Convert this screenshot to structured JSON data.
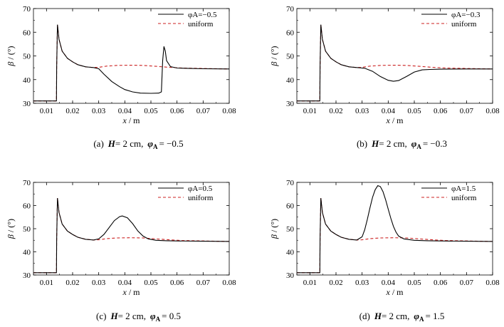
{
  "chart_data": [
    {
      "type": "line",
      "panel_label": "(a)",
      "caption_prefix": "H",
      "caption_h": "= 2 cm,",
      "caption_phi_value": "= −0.5",
      "xlabel": "x",
      "xunit": "m",
      "ylabel": "β",
      "yunit": "(°)",
      "xlim": [
        0.005,
        0.08
      ],
      "ylim": [
        30,
        70
      ],
      "xticks": [
        "0.01",
        "0.02",
        "0.03",
        "0.04",
        "0.05",
        "0.06",
        "0.07",
        "0.08"
      ],
      "yticks": [
        "30",
        "40",
        "50",
        "60",
        "70"
      ],
      "legend_placement": "top-right",
      "series": [
        {
          "name": "φA=−0.5",
          "style": "solid",
          "color": "#000000",
          "points": [
            [
              0.005,
              31
            ],
            [
              0.0138,
              31
            ],
            [
              0.0139,
              45
            ],
            [
              0.0142,
              63.2
            ],
            [
              0.0148,
              57
            ],
            [
              0.016,
              52
            ],
            [
              0.018,
              49
            ],
            [
              0.02,
              47.5
            ],
            [
              0.022,
              46.3
            ],
            [
              0.025,
              45.4
            ],
            [
              0.028,
              45.1
            ],
            [
              0.03,
              44.6
            ],
            [
              0.032,
              42.3
            ],
            [
              0.035,
              39.2
            ],
            [
              0.038,
              37
            ],
            [
              0.04,
              35.8
            ],
            [
              0.043,
              34.8
            ],
            [
              0.046,
              34.3
            ],
            [
              0.05,
              34.2
            ],
            [
              0.053,
              34.3
            ],
            [
              0.054,
              34.8
            ],
            [
              0.0545,
              48
            ],
            [
              0.055,
              54
            ],
            [
              0.0555,
              52
            ],
            [
              0.056,
              48
            ],
            [
              0.0575,
              45.5
            ],
            [
              0.06,
              44.9
            ],
            [
              0.065,
              44.7
            ],
            [
              0.07,
              44.6
            ],
            [
              0.08,
              44.5
            ]
          ]
        },
        {
          "name": "uniform",
          "style": "dashed",
          "color": "#cc2222",
          "points": [
            [
              0.005,
              31
            ],
            [
              0.0138,
              31
            ],
            [
              0.0139,
              45
            ],
            [
              0.0142,
              63.2
            ],
            [
              0.0148,
              57
            ],
            [
              0.016,
              52
            ],
            [
              0.018,
              49
            ],
            [
              0.02,
              47.5
            ],
            [
              0.022,
              46.3
            ],
            [
              0.025,
              45.4
            ],
            [
              0.028,
              45.1
            ],
            [
              0.03,
              45.2
            ],
            [
              0.033,
              45.7
            ],
            [
              0.037,
              46
            ],
            [
              0.042,
              46.1
            ],
            [
              0.047,
              46
            ],
            [
              0.052,
              45.6
            ],
            [
              0.057,
              45.2
            ],
            [
              0.062,
              44.9
            ],
            [
              0.07,
              44.7
            ],
            [
              0.08,
              44.5
            ]
          ]
        }
      ]
    },
    {
      "type": "line",
      "panel_label": "(b)",
      "caption_prefix": "H",
      "caption_h": "= 2 cm,",
      "caption_phi_value": "= −0.3",
      "xlabel": "x",
      "xunit": "m",
      "ylabel": "β",
      "yunit": "(°)",
      "xlim": [
        0.005,
        0.08
      ],
      "ylim": [
        30,
        70
      ],
      "xticks": [
        "0.01",
        "0.02",
        "0.03",
        "0.04",
        "0.05",
        "0.06",
        "0.07",
        "0.08"
      ],
      "yticks": [
        "30",
        "40",
        "50",
        "60",
        "70"
      ],
      "legend_placement": "top-right",
      "series": [
        {
          "name": "φA=−0.3",
          "style": "solid",
          "color": "#000000",
          "points": [
            [
              0.005,
              31
            ],
            [
              0.0138,
              31
            ],
            [
              0.0139,
              45
            ],
            [
              0.0142,
              63.2
            ],
            [
              0.0148,
              57
            ],
            [
              0.016,
              52
            ],
            [
              0.018,
              49
            ],
            [
              0.02,
              47.5
            ],
            [
              0.022,
              46.3
            ],
            [
              0.025,
              45.4
            ],
            [
              0.028,
              45.1
            ],
            [
              0.031,
              44.8
            ],
            [
              0.034,
              43.5
            ],
            [
              0.037,
              41.3
            ],
            [
              0.04,
              39.7
            ],
            [
              0.042,
              39.3
            ],
            [
              0.044,
              39.6
            ],
            [
              0.047,
              41.3
            ],
            [
              0.05,
              43.2
            ],
            [
              0.053,
              44.1
            ],
            [
              0.056,
              44.3
            ],
            [
              0.06,
              44.4
            ],
            [
              0.07,
              44.5
            ],
            [
              0.08,
              44.5
            ]
          ]
        },
        {
          "name": "uniform",
          "style": "dashed",
          "color": "#cc2222",
          "points": [
            [
              0.005,
              31
            ],
            [
              0.0138,
              31
            ],
            [
              0.0139,
              45
            ],
            [
              0.0142,
              63.2
            ],
            [
              0.0148,
              57
            ],
            [
              0.016,
              52
            ],
            [
              0.018,
              49
            ],
            [
              0.02,
              47.5
            ],
            [
              0.022,
              46.3
            ],
            [
              0.025,
              45.4
            ],
            [
              0.028,
              45.1
            ],
            [
              0.03,
              45.2
            ],
            [
              0.033,
              45.7
            ],
            [
              0.037,
              46
            ],
            [
              0.042,
              46.1
            ],
            [
              0.047,
              46
            ],
            [
              0.052,
              45.6
            ],
            [
              0.057,
              45.2
            ],
            [
              0.062,
              44.9
            ],
            [
              0.07,
              44.7
            ],
            [
              0.08,
              44.5
            ]
          ]
        }
      ]
    },
    {
      "type": "line",
      "panel_label": "(c)",
      "caption_prefix": "H",
      "caption_h": "= 2 cm,",
      "caption_phi_value": "= 0.5",
      "xlabel": "x",
      "xunit": "m",
      "ylabel": "β",
      "yunit": "(°)",
      "xlim": [
        0.005,
        0.08
      ],
      "ylim": [
        30,
        70
      ],
      "xticks": [
        "0.01",
        "0.02",
        "0.03",
        "0.04",
        "0.05",
        "0.06",
        "0.07",
        "0.08"
      ],
      "yticks": [
        "30",
        "40",
        "50",
        "60",
        "70"
      ],
      "legend_placement": "top-right",
      "series": [
        {
          "name": "φA=0.5",
          "style": "solid",
          "color": "#000000",
          "points": [
            [
              0.005,
              31
            ],
            [
              0.0138,
              31
            ],
            [
              0.0139,
              45
            ],
            [
              0.0142,
              63.2
            ],
            [
              0.0148,
              57
            ],
            [
              0.016,
              52
            ],
            [
              0.018,
              49
            ],
            [
              0.02,
              47.5
            ],
            [
              0.022,
              46.3
            ],
            [
              0.025,
              45.4
            ],
            [
              0.028,
              45.1
            ],
            [
              0.03,
              45.6
            ],
            [
              0.032,
              47.5
            ],
            [
              0.034,
              50.5
            ],
            [
              0.036,
              53.5
            ],
            [
              0.038,
              55.2
            ],
            [
              0.039,
              55.5
            ],
            [
              0.041,
              54.7
            ],
            [
              0.043,
              52.2
            ],
            [
              0.045,
              49
            ],
            [
              0.047,
              46.8
            ],
            [
              0.049,
              45.6
            ],
            [
              0.052,
              45
            ],
            [
              0.056,
              44.8
            ],
            [
              0.06,
              44.7
            ],
            [
              0.07,
              44.6
            ],
            [
              0.08,
              44.5
            ]
          ]
        },
        {
          "name": "uniform",
          "style": "dashed",
          "color": "#cc2222",
          "points": [
            [
              0.005,
              31
            ],
            [
              0.0138,
              31
            ],
            [
              0.0139,
              45
            ],
            [
              0.0142,
              63.2
            ],
            [
              0.0148,
              57
            ],
            [
              0.016,
              52
            ],
            [
              0.018,
              49
            ],
            [
              0.02,
              47.5
            ],
            [
              0.022,
              46.3
            ],
            [
              0.025,
              45.4
            ],
            [
              0.028,
              45.1
            ],
            [
              0.03,
              45.2
            ],
            [
              0.033,
              45.7
            ],
            [
              0.037,
              46
            ],
            [
              0.042,
              46.1
            ],
            [
              0.047,
              46
            ],
            [
              0.052,
              45.6
            ],
            [
              0.057,
              45.2
            ],
            [
              0.062,
              44.9
            ],
            [
              0.07,
              44.7
            ],
            [
              0.08,
              44.5
            ]
          ]
        }
      ]
    },
    {
      "type": "line",
      "panel_label": "(d)",
      "caption_prefix": "H",
      "caption_h": "= 2 cm,",
      "caption_phi_value": "= 1.5",
      "xlabel": "x",
      "xunit": "m",
      "ylabel": "β",
      "yunit": "(°)",
      "xlim": [
        0.005,
        0.08
      ],
      "ylim": [
        30,
        70
      ],
      "xticks": [
        "0.01",
        "0.02",
        "0.03",
        "0.04",
        "0.05",
        "0.06",
        "0.07",
        "0.08"
      ],
      "yticks": [
        "30",
        "40",
        "50",
        "60",
        "70"
      ],
      "legend_placement": "top-right",
      "series": [
        {
          "name": "φA=1.5",
          "style": "solid",
          "color": "#000000",
          "points": [
            [
              0.005,
              31
            ],
            [
              0.0138,
              31
            ],
            [
              0.0139,
              45
            ],
            [
              0.0142,
              63.2
            ],
            [
              0.0148,
              57
            ],
            [
              0.016,
              52
            ],
            [
              0.018,
              49
            ],
            [
              0.02,
              47.5
            ],
            [
              0.022,
              46.3
            ],
            [
              0.025,
              45.4
            ],
            [
              0.028,
              45.1
            ],
            [
              0.03,
              46.5
            ],
            [
              0.031,
              49.5
            ],
            [
              0.032,
              54
            ],
            [
              0.033,
              59
            ],
            [
              0.034,
              63.5
            ],
            [
              0.035,
              66.8
            ],
            [
              0.036,
              68.6
            ],
            [
              0.037,
              68.2
            ],
            [
              0.038,
              66
            ],
            [
              0.039,
              62.5
            ],
            [
              0.04,
              58.5
            ],
            [
              0.041,
              54.5
            ],
            [
              0.042,
              51
            ],
            [
              0.043,
              48.5
            ],
            [
              0.044,
              46.8
            ],
            [
              0.046,
              45.6
            ],
            [
              0.05,
              45
            ],
            [
              0.055,
              44.8
            ],
            [
              0.06,
              44.7
            ],
            [
              0.07,
              44.6
            ],
            [
              0.08,
              44.5
            ]
          ]
        },
        {
          "name": "uniform",
          "style": "dashed",
          "color": "#cc2222",
          "points": [
            [
              0.005,
              31
            ],
            [
              0.0138,
              31
            ],
            [
              0.0139,
              45
            ],
            [
              0.0142,
              63.2
            ],
            [
              0.0148,
              57
            ],
            [
              0.016,
              52
            ],
            [
              0.018,
              49
            ],
            [
              0.02,
              47.5
            ],
            [
              0.022,
              46.3
            ],
            [
              0.025,
              45.4
            ],
            [
              0.028,
              45.1
            ],
            [
              0.03,
              45.2
            ],
            [
              0.033,
              45.7
            ],
            [
              0.037,
              46
            ],
            [
              0.042,
              46.1
            ],
            [
              0.047,
              46
            ],
            [
              0.052,
              45.6
            ],
            [
              0.057,
              45.2
            ],
            [
              0.062,
              44.9
            ],
            [
              0.07,
              44.7
            ],
            [
              0.08,
              44.5
            ]
          ]
        }
      ]
    }
  ]
}
